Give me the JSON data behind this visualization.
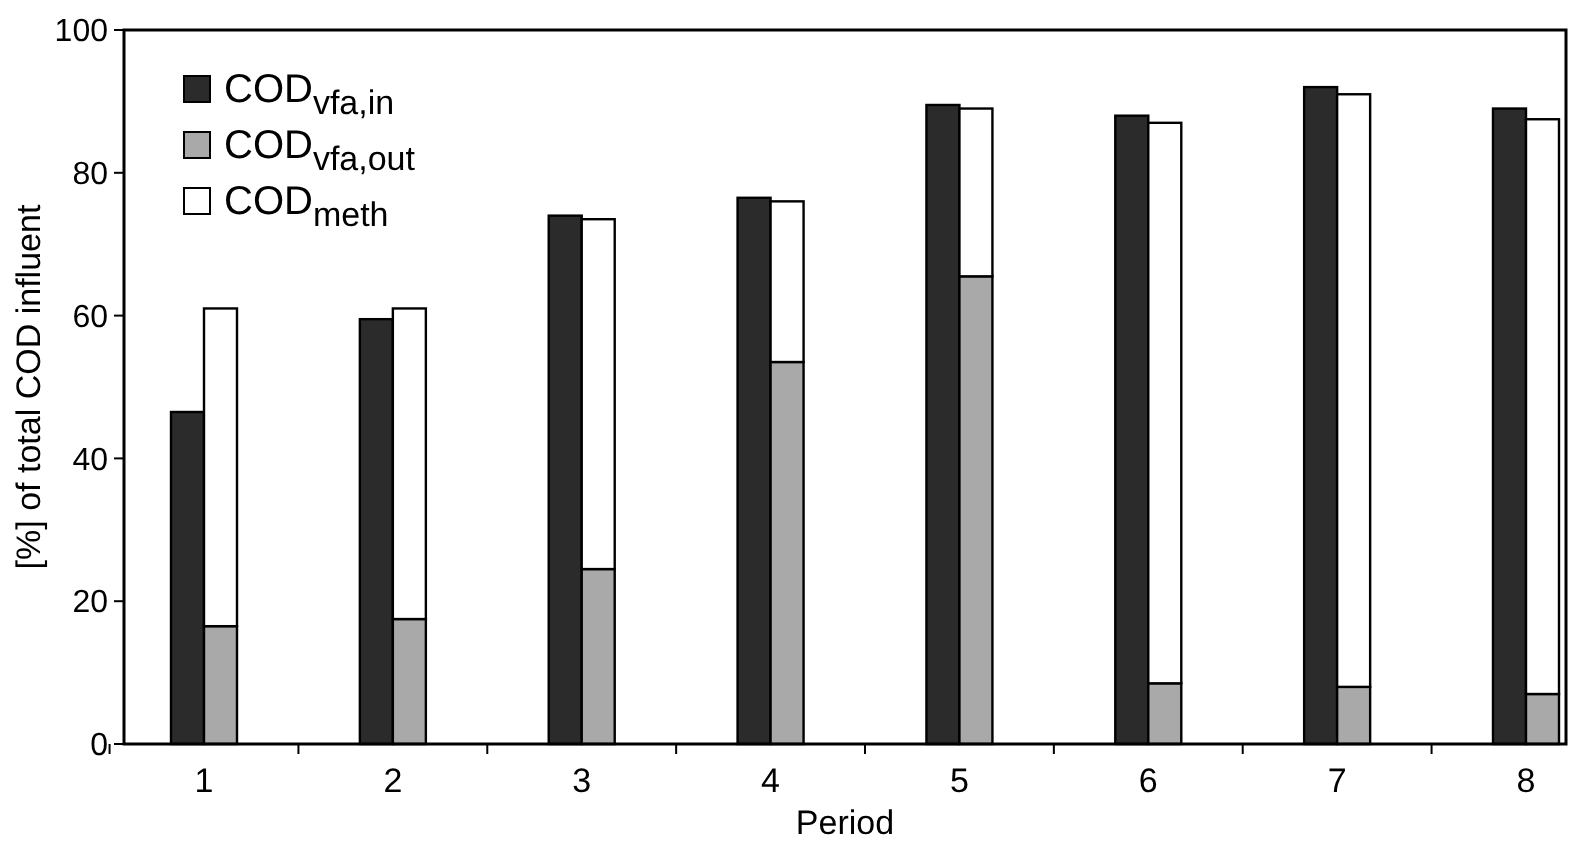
{
  "chart_data": {
    "type": "bar",
    "xlabel": "Period",
    "ylabel": "[%] of total COD influent",
    "categories": [
      "1",
      "2",
      "3",
      "4",
      "5",
      "6",
      "7",
      "8"
    ],
    "series": [
      {
        "name": "COD$_{vfa,in}$",
        "color": "#2b2b2b",
        "values": [
          46.5,
          59.5,
          74,
          76.5,
          89.5,
          88,
          92,
          89
        ]
      },
      {
        "name": "COD$_{vfa,out}$",
        "color": "#a9a9a9",
        "base": [
          0,
          0,
          0,
          0,
          0,
          0,
          0,
          0
        ],
        "values": [
          16.5,
          17.5,
          24.5,
          53.5,
          65.5,
          8.5,
          8,
          7
        ]
      },
      {
        "name": "COD$_{meth}$",
        "color": "#ffffff",
        "base": [
          16.5,
          17.5,
          24.5,
          53.5,
          65.5,
          8.5,
          8,
          7
        ],
        "values": [
          44.5,
          43.5,
          49,
          22.5,
          23.5,
          78.5,
          83,
          80.5
        ]
      }
    ],
    "ylim": [
      0,
      100
    ],
    "yticks": [
      0,
      20,
      40,
      60,
      80,
      100
    ],
    "legend": "top left"
  }
}
